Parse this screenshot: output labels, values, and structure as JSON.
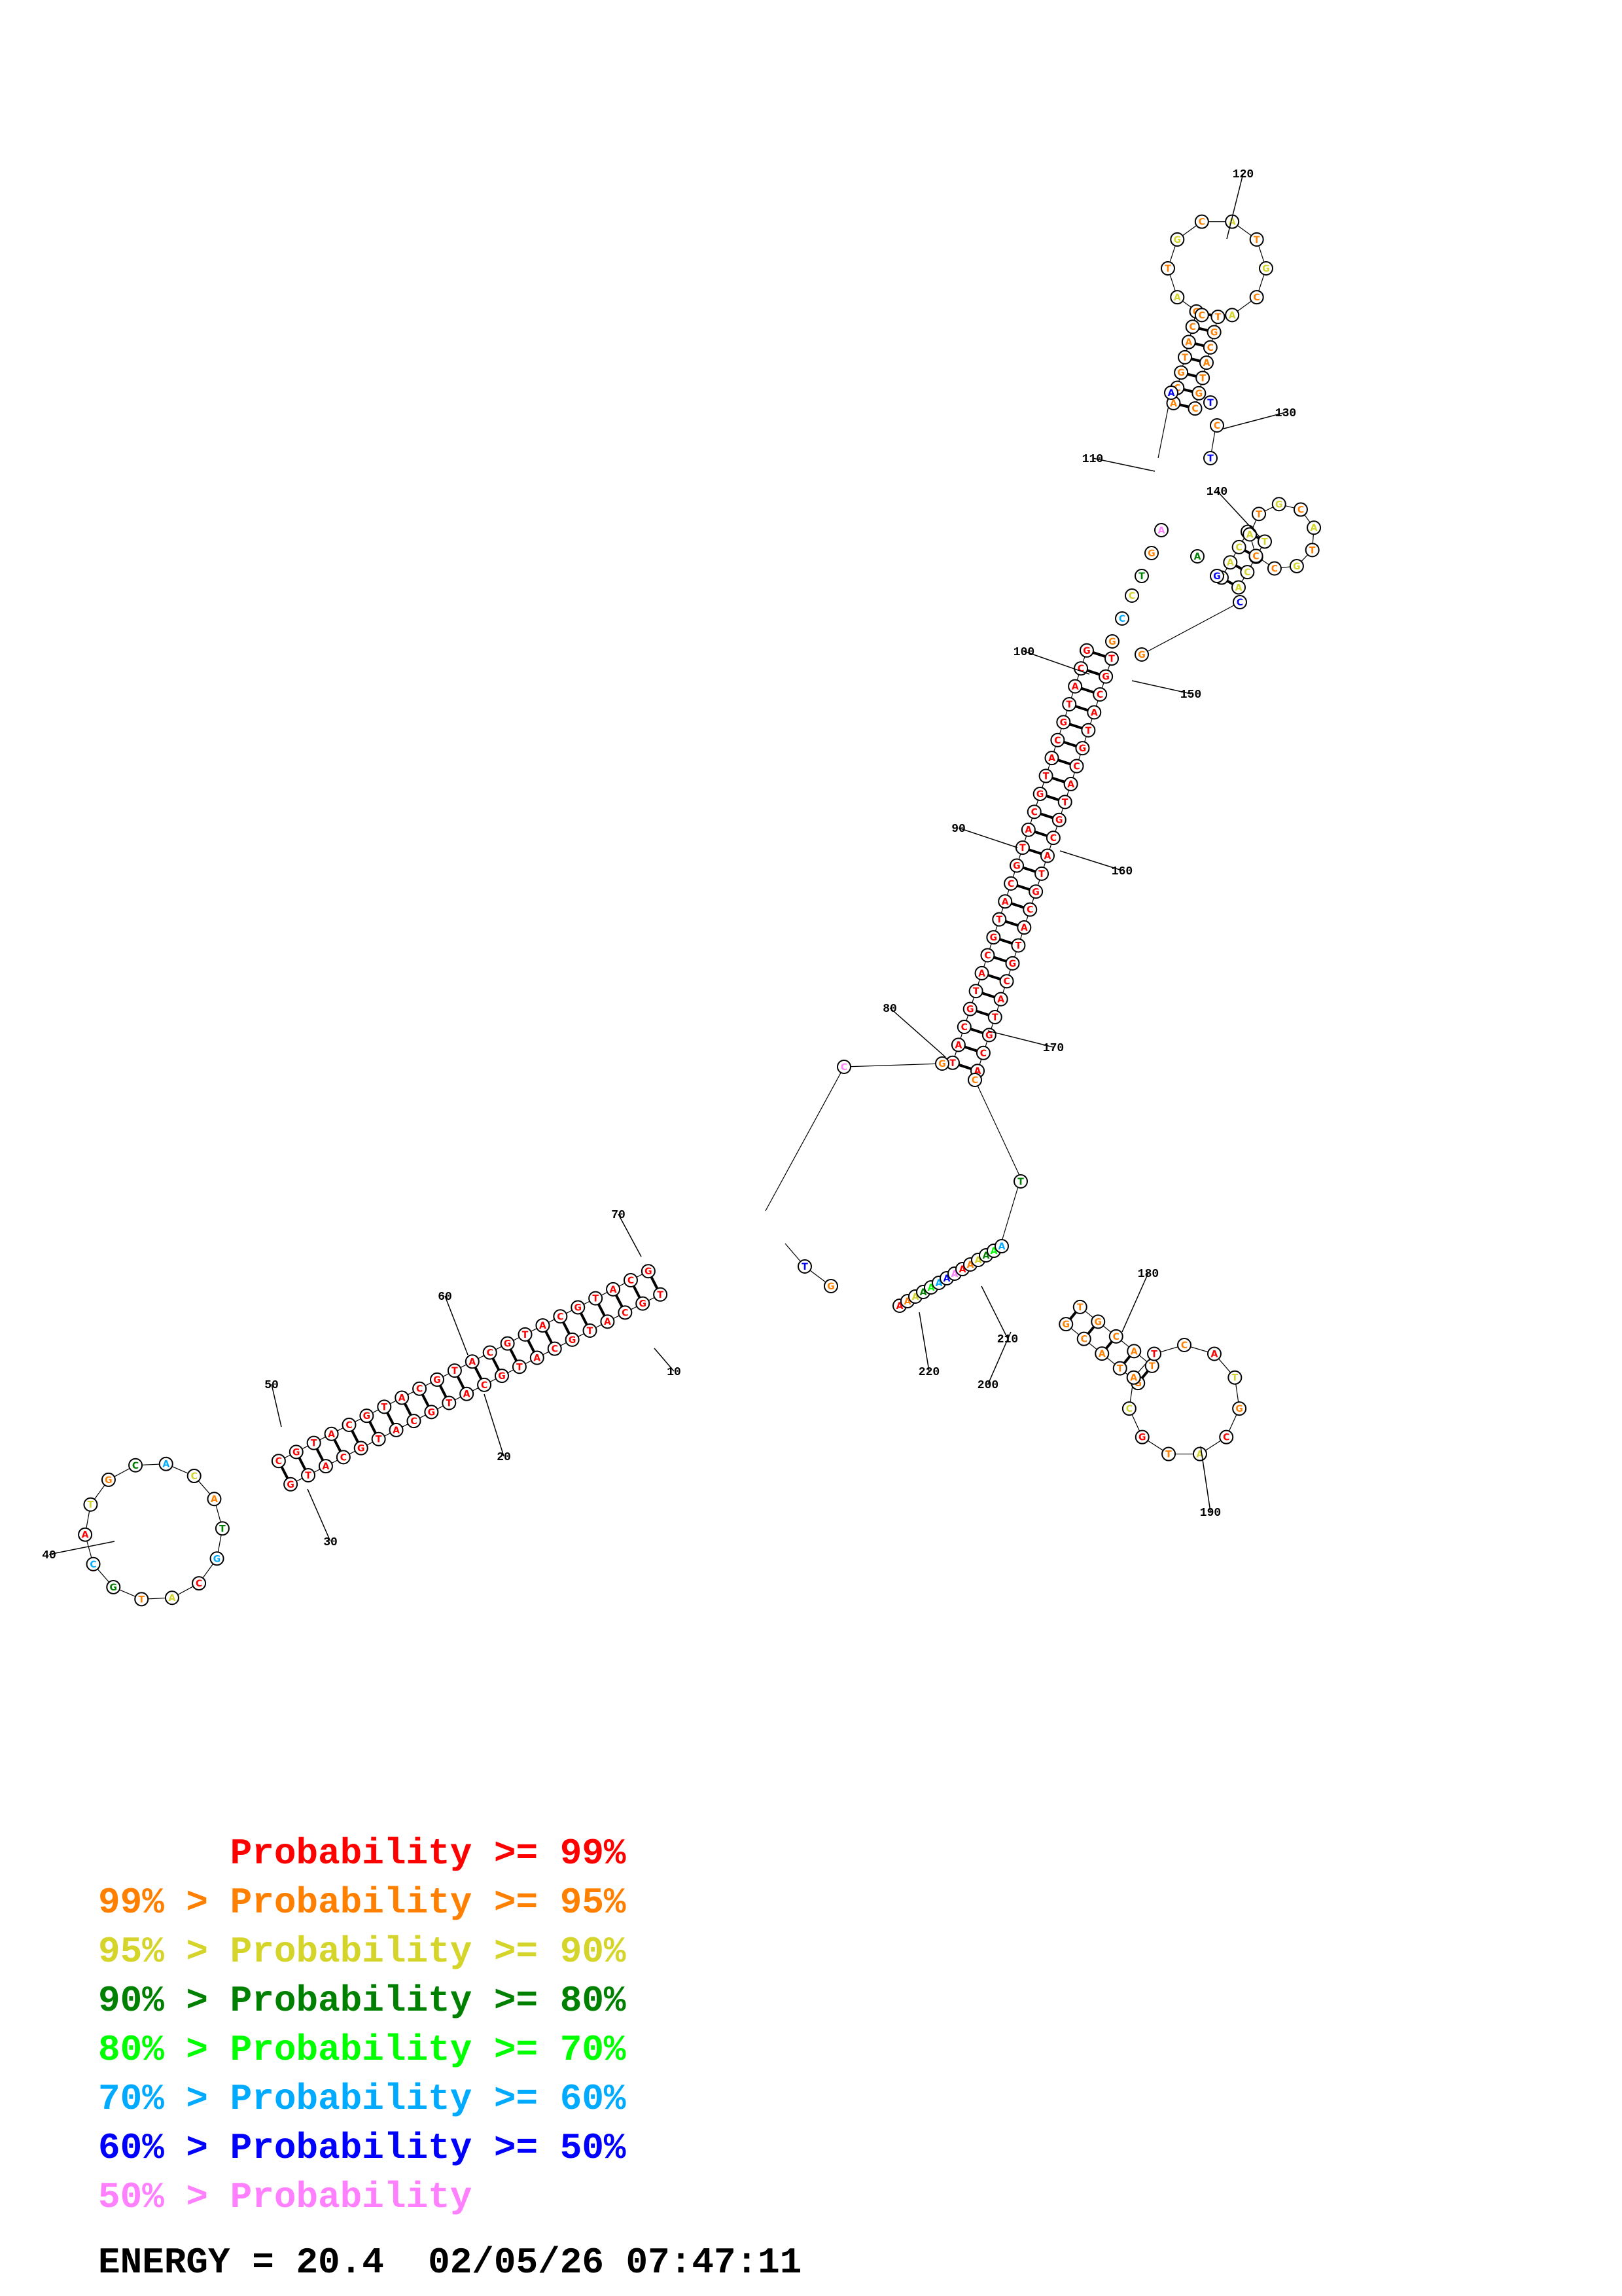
{
  "legend": [
    {
      "left": "",
      "right": "Probability >= 99%",
      "color": "#ff0000"
    },
    {
      "left": "99% > ",
      "right": "Probability >= 95%",
      "color": "#ff8000"
    },
    {
      "left": "95% > ",
      "right": "Probability >= 90%",
      "color": "#d4d42a"
    },
    {
      "left": "90% > ",
      "right": "Probability >= 80%",
      "color": "#008000"
    },
    {
      "left": "80% > ",
      "right": "Probability >= 70%",
      "color": "#00ff00"
    },
    {
      "left": "70% > ",
      "right": "Probability >= 60%",
      "color": "#00aaff"
    },
    {
      "left": "60% > ",
      "right": "Probability >= 50%",
      "color": "#0000ff"
    },
    {
      "left": "50% > ",
      "right": "Probability",
      "color": "#ff80ff"
    }
  ],
  "energy_label": "ENERGY = 20.4  02/05/26 07:47:11",
  "probability_colors": {
    "p99": "#ff0000",
    "p95": "#ff8000",
    "p90": "#d4d42a",
    "p80": "#008000",
    "p70": "#00ff00",
    "p60": "#00aaff",
    "p50": "#0000ff",
    "plow": "#ff80ff"
  },
  "index_labels": [
    "10",
    "20",
    "30",
    "40",
    "50",
    "60",
    "70",
    "80",
    "90",
    "100",
    "110",
    "120",
    "130",
    "140",
    "150",
    "160",
    "170",
    "180",
    "190",
    "200",
    "210",
    "220"
  ],
  "stems": [
    {
      "name": "stem-lower-left",
      "length": 22,
      "pairs_color": "p99",
      "labels_left": "TCCTCTCAACCTTACTGCACTCCG",
      "labels_right": "GGAGAGTTGGAATGACGTGAGGC"
    },
    {
      "name": "stem-upper-main",
      "length": 24,
      "pairs_color": "p99",
      "labels_left": "GGCTCATGCAGTCGCGTTGACAC",
      "labels_right": "CCGAGTACGTCAGCGCAACTGTG"
    },
    {
      "name": "stem-top-hairpin",
      "length": 7,
      "pairs_color": "p95"
    },
    {
      "name": "stem-right-hairpin",
      "length": 6,
      "pairs_color": "p95"
    }
  ]
}
